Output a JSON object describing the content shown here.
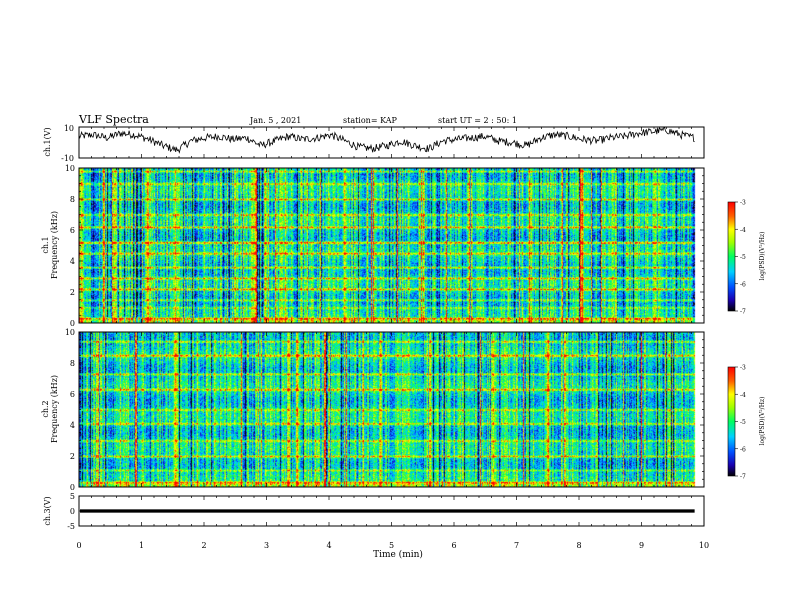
{
  "header": {
    "title": "VLF Spectra",
    "date": "Jan. 5 , 2021",
    "station": "station= KAP",
    "start_ut": "start UT = 2 : 50: 1"
  },
  "chart_data": [
    {
      "type": "line",
      "name": "ch1-waveform",
      "ylabel": "ch.1(V)",
      "ylim": [
        -10,
        10
      ],
      "yticklabels": [
        "10",
        "-10"
      ],
      "xlim": [
        0,
        10
      ],
      "trend": [
        4,
        5,
        3,
        6,
        5,
        2,
        -2,
        -5,
        1,
        3,
        4,
        2,
        3,
        -2,
        1,
        4,
        2,
        3,
        5,
        1,
        -3,
        -4,
        -2,
        1,
        -2,
        -4,
        1,
        2,
        3,
        4,
        1,
        0,
        -2,
        3,
        5,
        4,
        2,
        1,
        3,
        4,
        6,
        7,
        8,
        5,
        3
      ],
      "end_minute": 9.85
    },
    {
      "type": "heatmap",
      "name": "ch1-spectrogram",
      "ylabel": "ch.1\nFrequency (kHz)",
      "ylim": [
        0,
        10
      ],
      "yticks": [
        0,
        2,
        4,
        6,
        8,
        10
      ],
      "xlim": [
        0,
        10
      ],
      "end_minute": 9.85,
      "colorbar": {
        "label": "log(PSD)(V²/Hz)",
        "range": [
          -7,
          -3
        ],
        "ticks": [
          "-3",
          "-4",
          "-5",
          "-6",
          "-7"
        ]
      },
      "bands": [
        {
          "f": 0.3,
          "v": 0.75
        },
        {
          "f": 1.0,
          "v": 0.35
        },
        {
          "f": 1.5,
          "v": 0.45
        },
        {
          "f": 2.2,
          "v": 0.55
        },
        {
          "f": 2.9,
          "v": 0.5
        },
        {
          "f": 3.6,
          "v": 0.55
        },
        {
          "f": 4.5,
          "v": 0.5
        },
        {
          "f": 5.2,
          "v": 0.75
        },
        {
          "f": 6.2,
          "v": 0.55
        },
        {
          "f": 7.0,
          "v": 0.5
        },
        {
          "f": 8.0,
          "v": 0.5
        },
        {
          "f": 9.0,
          "v": 0.45
        },
        {
          "f": 9.8,
          "v": 0.45
        }
      ],
      "bursts": [
        0.05,
        0.55,
        1.1,
        1.55,
        2.8,
        3.3,
        4.25,
        6.4,
        7.2,
        8.05
      ]
    },
    {
      "type": "heatmap",
      "name": "ch2-spectrogram",
      "ylabel": "ch.2\nFrequency (kHz)",
      "ylim": [
        0,
        10
      ],
      "yticks": [
        0,
        2,
        4,
        6,
        8,
        10
      ],
      "xlim": [
        0,
        10
      ],
      "end_minute": 9.85,
      "colorbar": {
        "label": "log(PSD)(V²/Hz)",
        "range": [
          -7,
          -3
        ],
        "ticks": [
          "-3",
          "-4",
          "-5",
          "-6",
          "-7"
        ]
      },
      "bands": [
        {
          "f": 0.3,
          "v": 0.7
        },
        {
          "f": 1.1,
          "v": 0.35
        },
        {
          "f": 2.0,
          "v": 0.5
        },
        {
          "f": 3.0,
          "v": 0.45
        },
        {
          "f": 4.1,
          "v": 0.5
        },
        {
          "f": 5.0,
          "v": 0.45
        },
        {
          "f": 6.3,
          "v": 0.55
        },
        {
          "f": 7.3,
          "v": 0.5
        },
        {
          "f": 8.5,
          "v": 0.55
        },
        {
          "f": 9.4,
          "v": 0.5
        }
      ],
      "bursts": [
        0.3,
        0.9,
        1.55,
        3.35,
        3.5,
        4.8,
        5.6,
        6.6,
        7.5,
        7.75
      ]
    },
    {
      "type": "line",
      "name": "ch3-waveform",
      "ylabel": "ch.3(V)",
      "ylim": [
        -5,
        5
      ],
      "yticks": [
        5,
        0,
        -5
      ],
      "yticklabels": [
        "5",
        "0",
        "-5"
      ],
      "xlim": [
        0,
        10
      ],
      "level": 0,
      "band_halfwidth": 0.55,
      "end_minute": 9.85
    }
  ],
  "xaxis": {
    "label": "Time (min)",
    "ticks": [
      0,
      1,
      2,
      3,
      4,
      5,
      6,
      7,
      8,
      9,
      10
    ],
    "ticklabels": [
      "0",
      "1",
      "2",
      "3",
      "4",
      "5",
      "6",
      "7",
      "8",
      "9",
      "10"
    ]
  }
}
